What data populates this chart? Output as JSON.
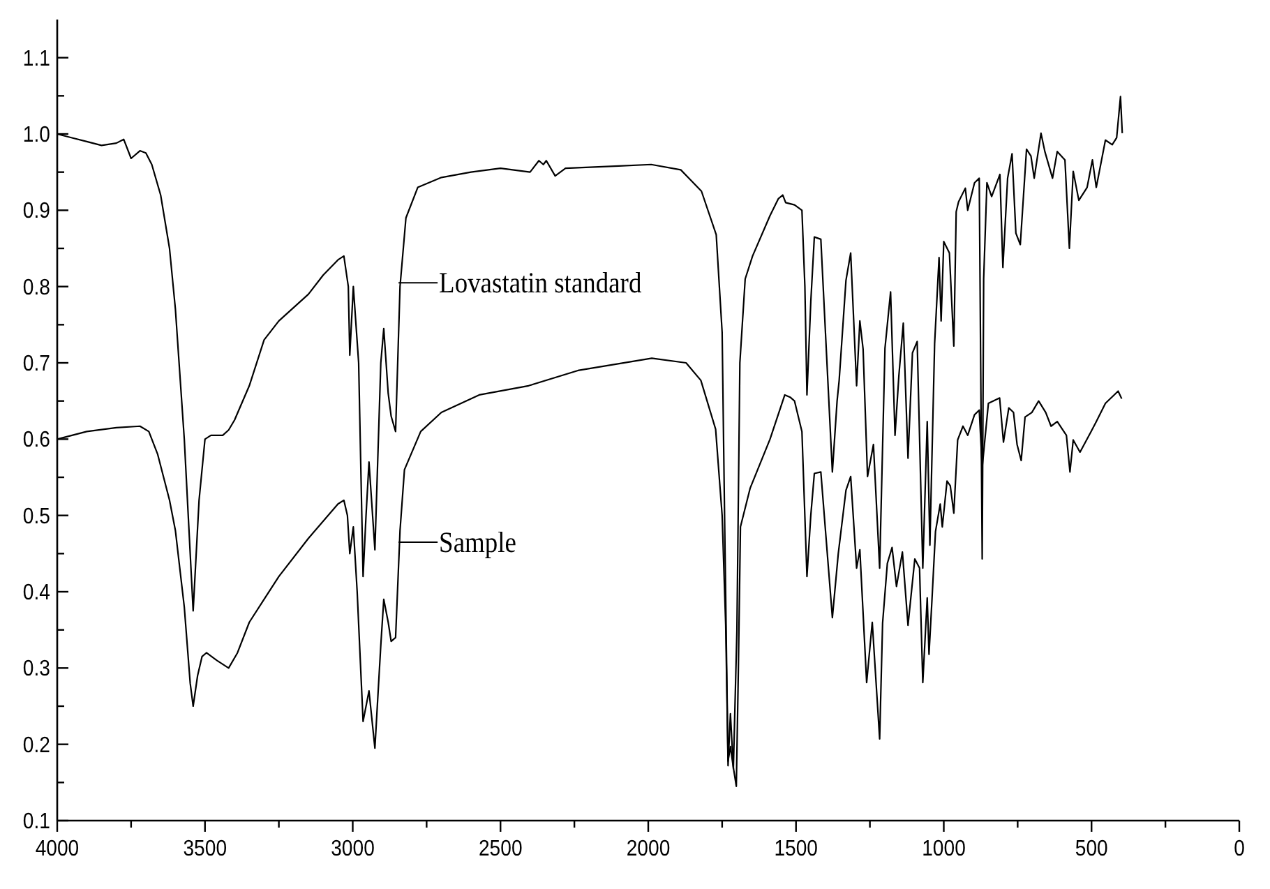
{
  "chart_data": {
    "type": "line",
    "xlim": [
      4000,
      0
    ],
    "ylim": [
      0.1,
      1.15
    ],
    "xticks": [
      4000,
      {
        "value": 3750,
        "label": null
      },
      3500,
      {
        "value": 3250,
        "label": null
      },
      3000,
      {
        "value": 2750,
        "label": null
      },
      2500,
      {
        "value": 2250,
        "label": null
      },
      2000,
      {
        "value": 1750,
        "label": null
      },
      1500,
      {
        "value": 1250,
        "label": null
      },
      1000,
      {
        "value": 750,
        "label": null
      },
      500,
      {
        "value": 250,
        "label": null
      },
      0
    ],
    "yticks": [
      0.1,
      {
        "value": 0.15,
        "label": null
      },
      0.2,
      {
        "value": 0.25,
        "label": null
      },
      0.3,
      {
        "value": 0.35,
        "label": null
      },
      0.4,
      {
        "value": 0.45,
        "label": null
      },
      0.5,
      {
        "value": 0.55,
        "label": null
      },
      0.6,
      {
        "value": 0.65,
        "label": null
      },
      0.7,
      {
        "value": 0.75,
        "label": null
      },
      0.8,
      {
        "value": 0.85,
        "label": null
      },
      0.9,
      {
        "value": 0.95,
        "label": null
      },
      {
        "value": 1,
        "label": "1.0"
      },
      {
        "value": 1.05,
        "label": null
      },
      1.1
    ],
    "marker": "none",
    "line_style": "solid",
    "series": [
      {
        "color": "#000000",
        "x": [
          4000,
          3950,
          3900,
          3850,
          3800,
          3775,
          3750,
          3720,
          3700,
          3680,
          3650,
          3620,
          3600,
          3570,
          3540,
          3520,
          3500,
          3480,
          3440,
          3420,
          3400,
          3350,
          3300,
          3250,
          3150,
          3100,
          3050,
          3030,
          3015,
          3010,
          2998,
          2980,
          2965,
          2955,
          2945,
          2925,
          2905,
          2895,
          2880,
          2870,
          2855,
          2840,
          2820,
          2780,
          2700,
          2600,
          2500,
          2400,
          2370,
          2355,
          2345,
          2315,
          2280,
          2100,
          1990,
          1890,
          1820,
          1770,
          1750,
          1740,
          1730,
          1722,
          1712,
          1700,
          1690,
          1672,
          1647,
          1588,
          1560,
          1545,
          1535,
          1505,
          1480,
          1470,
          1463,
          1450,
          1438,
          1416,
          1377,
          1361,
          1354,
          1331,
          1315,
          1295,
          1284,
          1273,
          1258,
          1238,
          1217,
          1199,
          1180,
          1165,
          1152,
          1137,
          1121,
          1106,
          1090,
          1071,
          1056,
          1047,
          1031,
          1016,
          1009,
          1000,
          981,
          966,
          958,
          950,
          927,
          919,
          896,
          880,
          870,
          865,
          854,
          838,
          810,
          800,
          784,
          769,
          756,
          741,
          720,
          705,
          694,
          671,
          658,
          632,
          616,
          590,
          575,
          562,
          543,
          515,
          497,
          484,
          453,
          430,
          415,
          402,
          396
        ],
        "values": [
          1.0,
          0.995,
          0.99,
          0.985,
          0.988,
          0.993,
          0.968,
          0.978,
          0.975,
          0.96,
          0.92,
          0.85,
          0.77,
          0.6,
          0.375,
          0.52,
          0.6,
          0.605,
          0.605,
          0.612,
          0.625,
          0.67,
          0.73,
          0.755,
          0.79,
          0.815,
          0.835,
          0.84,
          0.8,
          0.71,
          0.8,
          0.7,
          0.42,
          0.5,
          0.57,
          0.455,
          0.7,
          0.745,
          0.66,
          0.63,
          0.61,
          0.8,
          0.89,
          0.93,
          0.943,
          0.95,
          0.955,
          0.95,
          0.965,
          0.96,
          0.965,
          0.945,
          0.955,
          0.958,
          0.96,
          0.953,
          0.925,
          0.868,
          0.74,
          0.45,
          0.172,
          0.24,
          0.168,
          0.35,
          0.7,
          0.81,
          0.84,
          0.893,
          0.915,
          0.92,
          0.91,
          0.907,
          0.9,
          0.8,
          0.658,
          0.78,
          0.865,
          0.862,
          0.557,
          0.65,
          0.677,
          0.808,
          0.844,
          0.67,
          0.755,
          0.718,
          0.551,
          0.593,
          0.431,
          0.719,
          0.793,
          0.605,
          0.683,
          0.752,
          0.575,
          0.713,
          0.728,
          0.431,
          0.623,
          0.461,
          0.725,
          0.838,
          0.755,
          0.859,
          0.844,
          0.722,
          0.898,
          0.911,
          0.929,
          0.9,
          0.936,
          0.942,
          0.443,
          0.81,
          0.936,
          0.918,
          0.947,
          0.825,
          0.942,
          0.974,
          0.87,
          0.855,
          0.98,
          0.971,
          0.942,
          1.001,
          0.977,
          0.942,
          0.977,
          0.966,
          0.85,
          0.951,
          0.913,
          0.93,
          0.966,
          0.93,
          0.992,
          0.986,
          0.995,
          1.049,
          1.001
        ]
      },
      {
        "color": "#000000",
        "x": [
          4000,
          3900,
          3800,
          3720,
          3690,
          3660,
          3620,
          3600,
          3570,
          3550,
          3540,
          3525,
          3510,
          3495,
          3460,
          3420,
          3390,
          3350,
          3300,
          3250,
          3150,
          3050,
          3030,
          3018,
          3010,
          2998,
          2985,
          2965,
          2955,
          2945,
          2925,
          2905,
          2895,
          2880,
          2870,
          2855,
          2840,
          2825,
          2770,
          2700,
          2572,
          2405,
          2238,
          1988,
          1872,
          1822,
          1772,
          1750,
          1738,
          1730,
          1722,
          1713,
          1702,
          1695,
          1688,
          1655,
          1588,
          1538,
          1520,
          1505,
          1480,
          1463,
          1450,
          1438,
          1416,
          1377,
          1357,
          1331,
          1315,
          1295,
          1284,
          1261,
          1242,
          1217,
          1207,
          1191,
          1175,
          1160,
          1140,
          1121,
          1098,
          1082,
          1071,
          1056,
          1050,
          1040,
          1028,
          1012,
          1005,
          989,
          978,
          966,
          953,
          935,
          919,
          896,
          880,
          870,
          849,
          811,
          798,
          780,
          764,
          752,
          738,
          725,
          702,
          679,
          655,
          637,
          616,
          585,
          573,
          562,
          539,
          500,
          484,
          453,
          410,
          398
        ],
        "values": [
          0.6,
          0.61,
          0.615,
          0.617,
          0.61,
          0.58,
          0.52,
          0.48,
          0.38,
          0.28,
          0.25,
          0.29,
          0.315,
          0.32,
          0.31,
          0.3,
          0.32,
          0.36,
          0.39,
          0.42,
          0.47,
          0.515,
          0.52,
          0.5,
          0.45,
          0.485,
          0.4,
          0.23,
          0.25,
          0.27,
          0.195,
          0.33,
          0.39,
          0.36,
          0.335,
          0.34,
          0.48,
          0.56,
          0.61,
          0.635,
          0.658,
          0.67,
          0.69,
          0.706,
          0.7,
          0.677,
          0.613,
          0.5,
          0.357,
          0.178,
          0.197,
          0.172,
          0.145,
          0.3,
          0.485,
          0.536,
          0.6,
          0.658,
          0.655,
          0.65,
          0.61,
          0.42,
          0.5,
          0.555,
          0.557,
          0.366,
          0.45,
          0.533,
          0.551,
          0.431,
          0.455,
          0.281,
          0.36,
          0.207,
          0.359,
          0.437,
          0.458,
          0.407,
          0.452,
          0.356,
          0.443,
          0.431,
          0.281,
          0.392,
          0.318,
          0.389,
          0.479,
          0.515,
          0.485,
          0.545,
          0.539,
          0.503,
          0.599,
          0.617,
          0.605,
          0.632,
          0.638,
          0.563,
          0.647,
          0.654,
          0.596,
          0.641,
          0.635,
          0.593,
          0.572,
          0.629,
          0.635,
          0.65,
          0.635,
          0.617,
          0.623,
          0.605,
          0.557,
          0.599,
          0.583,
          0.611,
          0.623,
          0.647,
          0.663,
          0.653
        ]
      }
    ],
    "annotations": [
      {
        "text": "Lovastatin standard",
        "x": 2845,
        "y": 0.805
      },
      {
        "text": "Sample",
        "x": 2845,
        "y": 0.465
      }
    ]
  }
}
